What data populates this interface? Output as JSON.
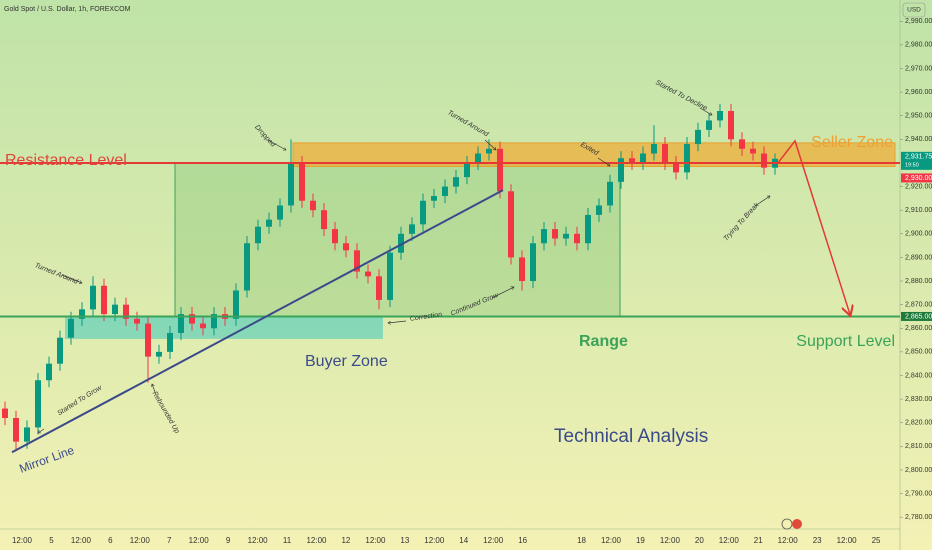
{
  "chart_data": {
    "type": "candlestick",
    "title": "Gold Spot / U.S. Dollar, 1h, FOREXCOM",
    "currency": "USD",
    "up_color": "#089981",
    "down_color": "#f23645",
    "ylim": [
      2775,
      2999
    ],
    "yticks": [
      {
        "value": 2990,
        "label": "2,990.00"
      },
      {
        "value": 2980,
        "label": "2,980.00"
      },
      {
        "value": 2970,
        "label": "2,970.00"
      },
      {
        "value": 2960,
        "label": "2,960.00"
      },
      {
        "value": 2950,
        "label": "2,950.00"
      },
      {
        "value": 2940,
        "label": "2,940.00"
      },
      {
        "value": 2920,
        "label": "2,920.00"
      },
      {
        "value": 2910,
        "label": "2,910.00"
      },
      {
        "value": 2900,
        "label": "2,900.00"
      },
      {
        "value": 2890,
        "label": "2,890.00"
      },
      {
        "value": 2880,
        "label": "2,880.00"
      },
      {
        "value": 2870,
        "label": "2,870.00"
      },
      {
        "value": 2860,
        "label": "2,860.00"
      },
      {
        "value": 2850,
        "label": "2,850.00"
      },
      {
        "value": 2840,
        "label": "2,840.00"
      },
      {
        "value": 2830,
        "label": "2,830.00"
      },
      {
        "value": 2820,
        "label": "2,820.00"
      },
      {
        "value": 2810,
        "label": "2,810.00"
      },
      {
        "value": 2800,
        "label": "2,800.00"
      },
      {
        "value": 2790,
        "label": "2,790.00"
      },
      {
        "value": 2780,
        "label": "2,780.00"
      }
    ],
    "xticks": [
      "12:00",
      "5",
      "12:00",
      "6",
      "12:00",
      "7",
      "12:00",
      "9",
      "12:00",
      "11",
      "12:00",
      "12",
      "12:00",
      "13",
      "12:00",
      "14",
      "12:00",
      "16",
      null,
      "18",
      "12:00",
      "19",
      "12:00",
      "20",
      "12:00",
      "21",
      "12:00",
      "23",
      "12:00",
      "25"
    ],
    "open": [
      2826,
      2822,
      2812,
      2818,
      2838,
      2845,
      2856,
      2864,
      2868,
      2878,
      2866,
      2870,
      2864,
      2862,
      2848,
      2850,
      2858,
      2866,
      2862,
      2860,
      2866,
      2864,
      2876,
      2896,
      2903,
      2906,
      2912,
      2930,
      2914,
      2910,
      2902,
      2896,
      2893,
      2884,
      2882,
      2872,
      2892,
      2900,
      2904,
      2914,
      2916,
      2920,
      2924,
      2930,
      2934,
      2936,
      2918,
      2890,
      2880,
      2896,
      2902,
      2898,
      2900,
      2896,
      2908,
      2912,
      2922,
      2932,
      2930,
      2934,
      2938,
      2930,
      2926,
      2938,
      2944,
      2948,
      2952,
      2940,
      2936,
      2934,
      2928
    ],
    "high": [
      2829,
      2825,
      2821,
      2841,
      2848,
      2859,
      2867,
      2871,
      2882,
      2881,
      2873,
      2873,
      2867,
      2865,
      2853,
      2861,
      2869,
      2869,
      2865,
      2869,
      2869,
      2879,
      2899,
      2906,
      2909,
      2915,
      2940,
      2933,
      2917,
      2913,
      2905,
      2899,
      2896,
      2887,
      2885,
      2895,
      2903,
      2907,
      2917,
      2919,
      2923,
      2927,
      2933,
      2937,
      2940,
      2939,
      2921,
      2893,
      2899,
      2905,
      2905,
      2903,
      2903,
      2911,
      2915,
      2925,
      2935,
      2935,
      2937,
      2946,
      2941,
      2933,
      2941,
      2947,
      2951,
      2955,
      2955,
      2943,
      2939,
      2937,
      2934
    ],
    "low": [
      2819,
      2808,
      2809,
      2815,
      2835,
      2842,
      2853,
      2861,
      2865,
      2863,
      2863,
      2861,
      2859,
      2837,
      2845,
      2847,
      2855,
      2859,
      2857,
      2857,
      2861,
      2861,
      2873,
      2893,
      2900,
      2903,
      2909,
      2911,
      2907,
      2899,
      2893,
      2890,
      2881,
      2879,
      2868,
      2869,
      2889,
      2897,
      2901,
      2911,
      2913,
      2917,
      2921,
      2927,
      2931,
      2915,
      2887,
      2876,
      2877,
      2893,
      2895,
      2895,
      2893,
      2893,
      2905,
      2909,
      2919,
      2927,
      2927,
      2931,
      2927,
      2923,
      2923,
      2935,
      2941,
      2945,
      2937,
      2933,
      2931,
      2925,
      2925
    ],
    "close": [
      2822,
      2812,
      2818,
      2838,
      2845,
      2856,
      2864,
      2868,
      2878,
      2866,
      2870,
      2864,
      2862,
      2848,
      2850,
      2858,
      2866,
      2862,
      2860,
      2866,
      2864,
      2876,
      2896,
      2903,
      2906,
      2912,
      2930,
      2914,
      2910,
      2902,
      2896,
      2893,
      2884,
      2882,
      2872,
      2892,
      2900,
      2904,
      2914,
      2916,
      2920,
      2924,
      2930,
      2934,
      2936,
      2918,
      2890,
      2880,
      2896,
      2902,
      2898,
      2900,
      2896,
      2908,
      2912,
      2922,
      2932,
      2930,
      2934,
      2938,
      2930,
      2926,
      2938,
      2944,
      2948,
      2952,
      2940,
      2936,
      2934,
      2928,
      2931.75
    ],
    "last_price": {
      "value": 2931.75,
      "label": "2,931.75",
      "time": "19:50"
    },
    "resistance": {
      "value": 2930,
      "label": "2,930.00",
      "name": "Resistance Level"
    },
    "support": {
      "value": 2865,
      "label": "2,865.00",
      "name": "Support Level"
    },
    "seller_zone": {
      "name": "Seller Zone",
      "top": 2938.5,
      "bottom": 2928.5
    },
    "buyer_zone": {
      "name": "Buyer Zone",
      "top": 2865,
      "bottom": 2855.5
    },
    "range": {
      "name": "Range",
      "top": 2930,
      "bottom": 2865
    },
    "mirror_line": {
      "name": "Mirror Line",
      "start": 2807.5,
      "end": 2918.5
    },
    "headline": "Technical Analysis",
    "annotations": [
      "Started To Grow",
      "Turned Around",
      "Rebounded Up",
      "Dropped",
      "Correction",
      "Turned Around",
      "Continued Grow",
      "Exited",
      "Started To Decline",
      "Trying To Break"
    ]
  }
}
